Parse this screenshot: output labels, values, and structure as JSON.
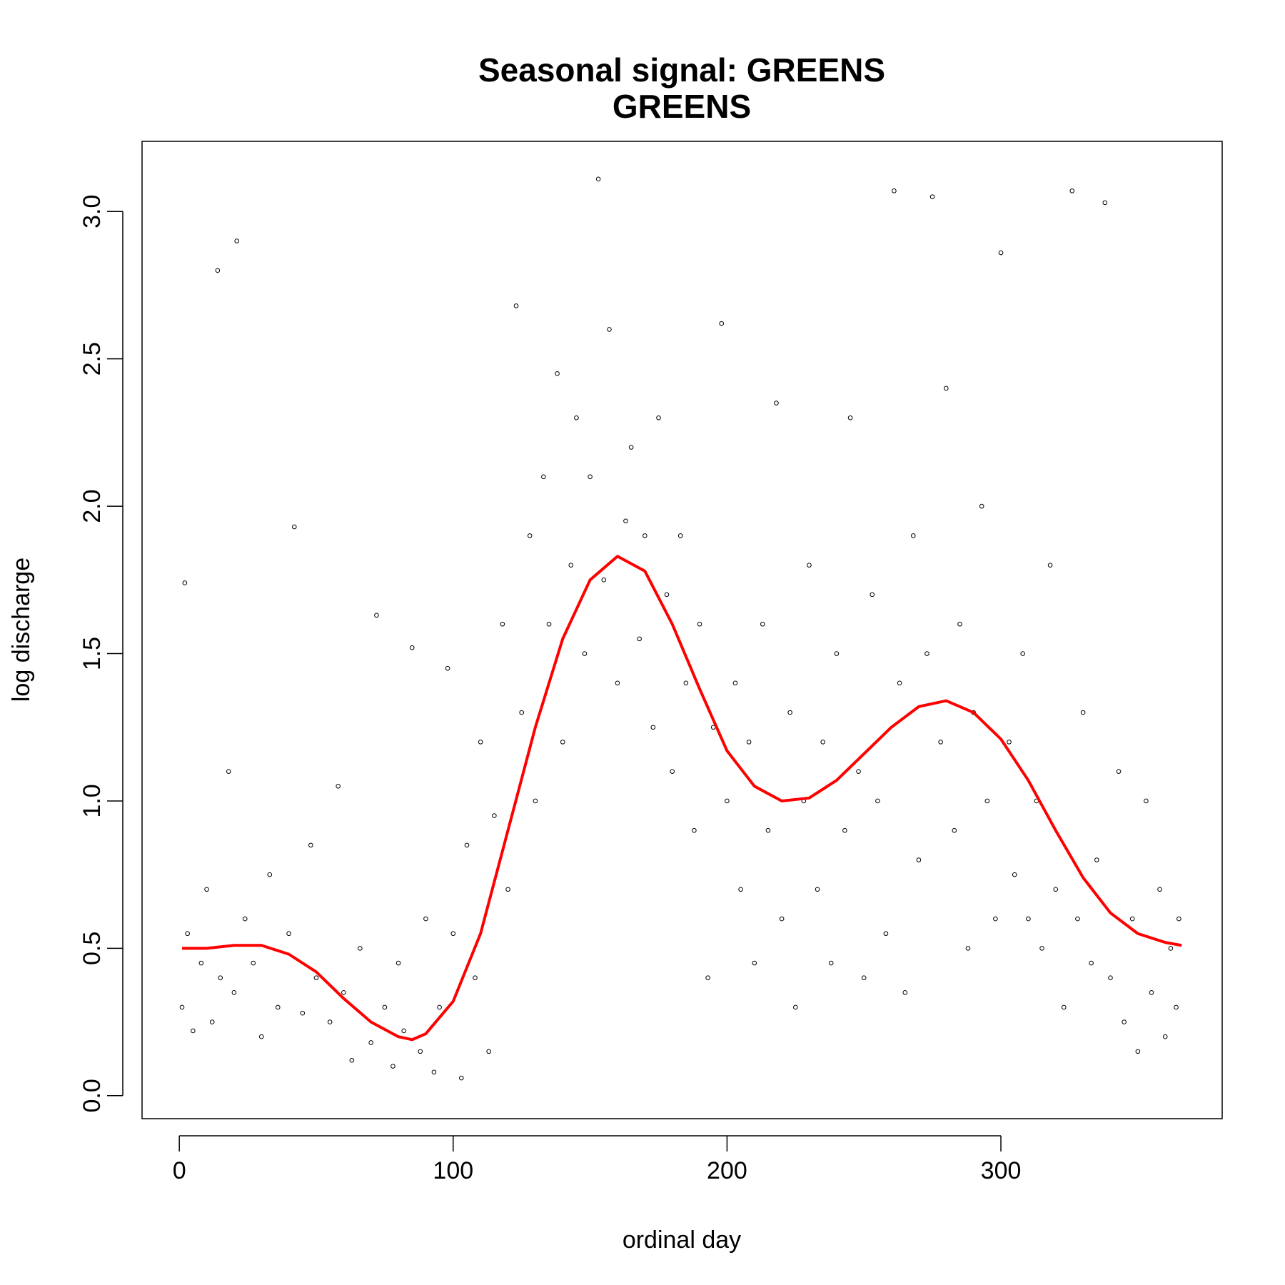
{
  "chart_data": {
    "type": "scatter",
    "title": "Seasonal signal: GREENS",
    "subtitle": "GREENS",
    "x_label": "ordinal day",
    "y_label": "log discharge",
    "xlim": [
      -13.6,
      380.8
    ],
    "ylim": [
      -0.078,
      3.238
    ],
    "xticks": [
      0,
      100,
      200,
      300
    ],
    "yticks": [
      {
        "value": 0,
        "label": "0.0"
      },
      0.5,
      {
        "value": 1,
        "label": "1.0"
      },
      1.5,
      {
        "value": 2,
        "label": "2.0"
      },
      2.5,
      {
        "value": 3,
        "label": "3.0"
      }
    ],
    "grid": false,
    "series": [
      {
        "type": "scatter",
        "color": "#000000",
        "x": [
          1,
          2,
          3,
          5,
          8,
          10,
          12,
          14,
          15,
          18,
          20,
          21,
          24,
          27,
          30,
          33,
          36,
          40,
          42,
          45,
          48,
          50,
          55,
          58,
          60,
          63,
          66,
          70,
          72,
          75,
          78,
          80,
          82,
          85,
          88,
          90,
          93,
          95,
          98,
          100,
          103,
          105,
          108,
          110,
          113,
          115,
          118,
          120,
          123,
          125,
          128,
          130,
          133,
          135,
          138,
          140,
          143,
          145,
          148,
          150,
          153,
          155,
          157,
          160,
          163,
          165,
          168,
          170,
          173,
          175,
          178,
          180,
          183,
          185,
          188,
          190,
          193,
          195,
          198,
          200,
          203,
          205,
          208,
          210,
          213,
          215,
          218,
          220,
          223,
          225,
          228,
          230,
          233,
          235,
          238,
          240,
          243,
          245,
          248,
          250,
          253,
          255,
          258,
          261,
          263,
          265,
          268,
          270,
          273,
          275,
          278,
          280,
          283,
          285,
          288,
          290,
          293,
          295,
          298,
          300,
          303,
          305,
          308,
          310,
          313,
          315,
          318,
          320,
          323,
          326,
          328,
          330,
          333,
          335,
          338,
          340,
          343,
          345,
          348,
          350,
          353,
          355,
          358,
          360,
          362,
          364,
          365
        ],
        "values": [
          0.3,
          1.74,
          0.55,
          0.22,
          0.45,
          0.7,
          0.25,
          2.8,
          0.4,
          1.1,
          0.35,
          2.9,
          0.6,
          0.45,
          0.2,
          0.75,
          0.3,
          0.55,
          1.93,
          0.28,
          0.85,
          0.4,
          0.25,
          1.05,
          0.35,
          0.12,
          0.5,
          0.18,
          1.63,
          0.3,
          0.1,
          0.45,
          0.22,
          1.52,
          0.15,
          0.6,
          0.08,
          0.3,
          1.45,
          0.55,
          0.06,
          0.85,
          0.4,
          1.2,
          0.15,
          0.95,
          1.6,
          0.7,
          2.68,
          1.3,
          1.9,
          1.0,
          2.1,
          1.6,
          2.45,
          1.2,
          1.8,
          2.3,
          1.5,
          2.1,
          3.11,
          1.75,
          2.6,
          1.4,
          1.95,
          2.2,
          1.55,
          1.9,
          1.25,
          2.3,
          1.7,
          1.1,
          1.9,
          1.4,
          0.9,
          1.6,
          0.4,
          1.25,
          2.62,
          1.0,
          1.4,
          0.7,
          1.2,
          0.45,
          1.6,
          0.9,
          2.35,
          0.6,
          1.3,
          0.3,
          1.0,
          1.8,
          0.7,
          1.2,
          0.45,
          1.5,
          0.9,
          2.3,
          1.1,
          0.4,
          1.7,
          1.0,
          0.55,
          3.07,
          1.4,
          0.35,
          1.9,
          0.8,
          1.5,
          3.05,
          1.2,
          2.4,
          0.9,
          1.6,
          0.5,
          1.3,
          2.0,
          1.0,
          0.6,
          2.86,
          1.2,
          0.75,
          1.5,
          0.6,
          1.0,
          0.5,
          1.8,
          0.7,
          0.3,
          3.07,
          0.6,
          1.3,
          0.45,
          0.8,
          3.03,
          0.4,
          1.1,
          0.25,
          0.6,
          0.15,
          1.0,
          0.35,
          0.7,
          0.2,
          0.5,
          0.3,
          0.6
        ]
      },
      {
        "type": "line",
        "color": "#ff0000",
        "x": [
          1,
          10,
          20,
          30,
          40,
          50,
          60,
          70,
          80,
          85,
          90,
          100,
          110,
          120,
          130,
          140,
          150,
          160,
          170,
          180,
          190,
          200,
          210,
          220,
          230,
          240,
          250,
          260,
          270,
          280,
          290,
          300,
          310,
          320,
          330,
          340,
          350,
          360,
          366
        ],
        "values": [
          0.5,
          0.5,
          0.51,
          0.51,
          0.48,
          0.42,
          0.33,
          0.25,
          0.2,
          0.19,
          0.21,
          0.32,
          0.55,
          0.9,
          1.25,
          1.55,
          1.75,
          1.83,
          1.78,
          1.6,
          1.38,
          1.17,
          1.05,
          1.0,
          1.01,
          1.07,
          1.16,
          1.25,
          1.32,
          1.34,
          1.3,
          1.21,
          1.07,
          0.9,
          0.74,
          0.62,
          0.55,
          0.52,
          0.51
        ]
      }
    ]
  }
}
